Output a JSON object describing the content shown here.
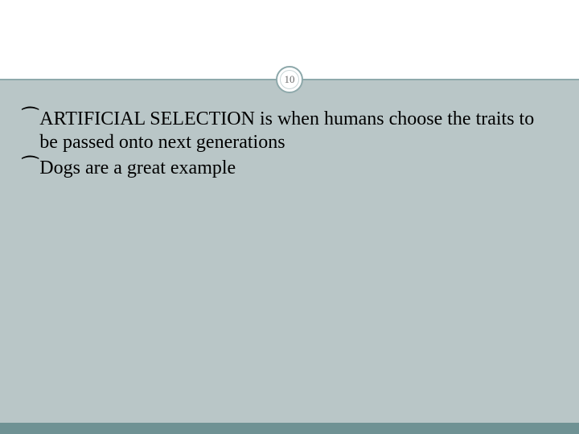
{
  "slide": {
    "number": "10",
    "colors": {
      "header_bg": "#ffffff",
      "body_bg": "#b9c6c7",
      "footer_bg": "#6f9294",
      "divider": "#8ea9ab",
      "text": "#000000",
      "number_text": "#6a6a6a"
    },
    "typography": {
      "body_fontsize_pt": 18,
      "number_fontsize_pt": 10,
      "font_family": "Georgia, serif"
    },
    "bullets": [
      {
        "glyph": "⁀",
        "emphasis": "ARTIFICIAL SELECTION",
        "rest": " is when humans choose the traits to be passed onto next generations"
      },
      {
        "glyph": "⁀",
        "emphasis": "",
        "rest": "Dogs are a great example"
      }
    ]
  }
}
